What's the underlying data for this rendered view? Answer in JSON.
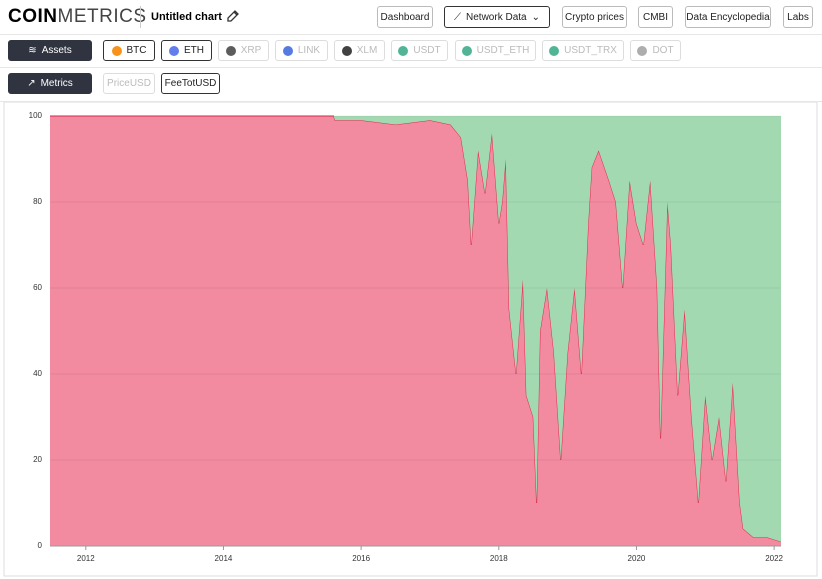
{
  "header": {
    "logo_bold": "COIN",
    "logo_light": "METRICS",
    "chart_name": "Untitled chart"
  },
  "nav": [
    "Dashboard",
    "Network Data",
    "Crypto prices",
    "CMBI",
    "Data Encyclopedia",
    "Labs"
  ],
  "assets_button": "Assets",
  "assets": [
    "BTC",
    "ETH",
    "XRP",
    "LINK",
    "XLM",
    "USDT",
    "USDT_ETH",
    "USDT_TRX",
    "DOT"
  ],
  "metrics_button": "Metrics",
  "metrics": [
    "PriceUSD",
    "FeeTotUSD"
  ],
  "chart_data": {
    "type": "stacked_area",
    "x": [
      2011.48,
      2015.6,
      2015.62,
      2016.0,
      2016.5,
      2017.0,
      2017.3,
      2017.45,
      2017.55,
      2017.6,
      2017.7,
      2017.8,
      2017.9,
      2018.0,
      2018.05,
      2018.1,
      2018.15,
      2018.25,
      2018.35,
      2018.4,
      2018.5,
      2018.55,
      2018.6,
      2018.7,
      2018.8,
      2018.9,
      2019.0,
      2019.1,
      2019.2,
      2019.3,
      2019.35,
      2019.45,
      2019.6,
      2019.7,
      2019.8,
      2019.9,
      2020.0,
      2020.1,
      2020.2,
      2020.3,
      2020.35,
      2020.45,
      2020.5,
      2020.6,
      2020.7,
      2020.8,
      2020.9,
      2021.0,
      2021.1,
      2021.2,
      2021.3,
      2021.4,
      2021.5,
      2021.55,
      2021.7,
      2021.9,
      2022.1
    ],
    "series": [
      {
        "name": "BTC",
        "color": "#f28ba0",
        "line_color": "#e0294f",
        "values": [
          100,
          100,
          99,
          99,
          98,
          99,
          98,
          95,
          85,
          70,
          92,
          82,
          96,
          75,
          80,
          90,
          55,
          40,
          62,
          35,
          30,
          10,
          50,
          60,
          45,
          20,
          45,
          60,
          40,
          75,
          88,
          92,
          85,
          80,
          60,
          85,
          75,
          70,
          85,
          60,
          25,
          80,
          70,
          35,
          55,
          30,
          10,
          35,
          20,
          30,
          15,
          38,
          10,
          4,
          2,
          2,
          1
        ]
      },
      {
        "name": "ETH",
        "color": "#a3d9b1",
        "values": [
          0,
          0,
          1,
          1,
          2,
          1,
          2,
          5,
          15,
          30,
          8,
          18,
          4,
          25,
          20,
          10,
          45,
          60,
          38,
          65,
          70,
          90,
          50,
          40,
          55,
          80,
          55,
          40,
          60,
          25,
          12,
          8,
          15,
          20,
          40,
          15,
          25,
          30,
          15,
          40,
          75,
          20,
          30,
          65,
          45,
          70,
          90,
          65,
          80,
          70,
          85,
          62,
          90,
          96,
          98,
          98,
          99
        ]
      }
    ],
    "xlim": [
      2011.48,
      2022.1
    ],
    "xticks": [
      2012,
      2014,
      2016,
      2018,
      2020,
      2022
    ],
    "ylim": [
      0,
      100
    ],
    "yticks": [
      0,
      20,
      40,
      60,
      80,
      100
    ],
    "grid": true
  }
}
